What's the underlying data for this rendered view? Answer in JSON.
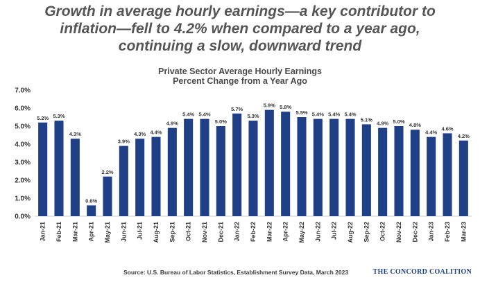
{
  "headline": {
    "lines": [
      "Growth in average hourly earnings—a key contributor to",
      "inflation—fell to 4.2% when compared to a year ago,",
      "continuing a slow, downward trend"
    ]
  },
  "chart_data": {
    "type": "bar",
    "title": "Private Sector Average Hourly Earnings",
    "subtitle": "Percent Change from a Year Ago",
    "categories": [
      "Jan-21",
      "Feb-21",
      "Mar-21",
      "Apr-21",
      "May-21",
      "Jun-21",
      "Jul-21",
      "Aug-21",
      "Sep-21",
      "Oct-21",
      "Nov-21",
      "Dec-21",
      "Jan-22",
      "Feb-22",
      "Mar-22",
      "Apr-22",
      "May-22",
      "Jun-22",
      "Jul-22",
      "Aug-22",
      "Sep-22",
      "Oct-22",
      "Nov-22",
      "Dec-22",
      "Jan-23",
      "Feb-23",
      "Mar-23"
    ],
    "values": [
      5.2,
      5.3,
      4.3,
      0.6,
      2.2,
      3.9,
      4.3,
      4.4,
      4.9,
      5.4,
      5.4,
      5.0,
      5.7,
      5.3,
      5.9,
      5.8,
      5.5,
      5.4,
      5.4,
      5.4,
      5.1,
      4.9,
      5.0,
      4.8,
      4.4,
      4.6,
      4.2
    ],
    "value_labels": [
      "5.2%",
      "5.3%",
      "4.3%",
      "0.6%",
      "2.2%",
      "3.9%",
      "4.3%",
      "4.4%",
      "4.9%",
      "5.4%",
      "5.4%",
      "5.0%",
      "5.7%",
      "5.3%",
      "5.9%",
      "5.8%",
      "5.5%",
      "5.4%",
      "5.4%",
      "5.4%",
      "5.1%",
      "4.9%",
      "5.0%",
      "4.8%",
      "4.4%",
      "4.6%",
      "4.2%"
    ],
    "y_ticks": [
      "0.0%",
      "1.0%",
      "2.0%",
      "3.0%",
      "4.0%",
      "5.0%",
      "6.0%",
      "7.0%"
    ],
    "ylim": [
      0,
      7
    ],
    "grid": false,
    "bar_color": "#1f3f86"
  },
  "footer": {
    "source": "Source: U.S. Bureau of Labor Statistics, Establishment Survey Data, March 2023",
    "logo": "THE CONCORD COALITION"
  }
}
